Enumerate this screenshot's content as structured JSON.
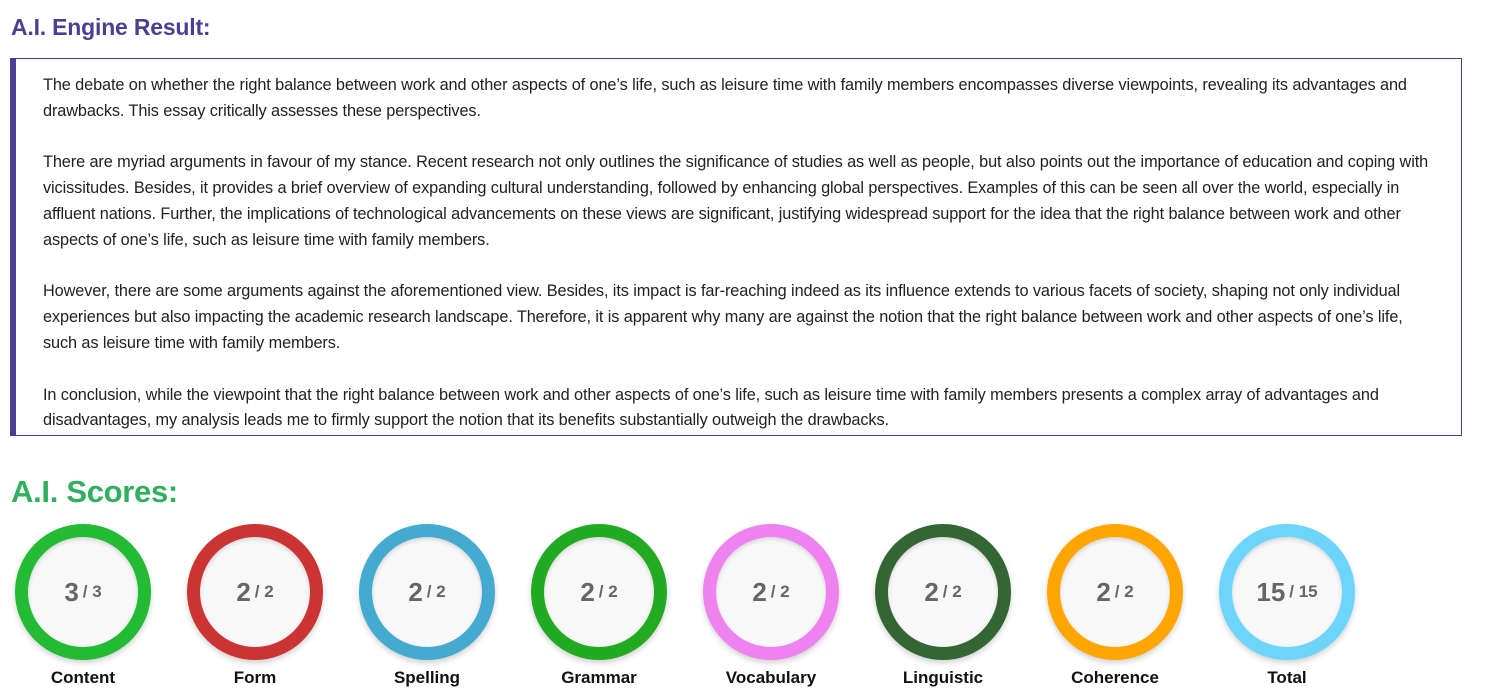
{
  "engine": {
    "title": "A.I. Engine Result:",
    "essay": [
      "The debate on whether the right balance between work and other aspects of one’s life, such as leisure time with family members encompasses diverse viewpoints, revealing its advantages and drawbacks. This essay critically assesses these perspectives.",
      "There are myriad arguments in favour of my stance. Recent research not only outlines the significance of studies as well as people, but also points out the importance of education and coping with vicissitudes. Besides, it provides a brief overview of expanding cultural understanding, followed by enhancing global perspectives. Examples of this can be seen all over the world, especially in affluent nations. Further, the implications of technological advancements on these views are significant, justifying widespread support for the idea that the right balance between work and other aspects of one’s life, such as leisure time with family members.",
      "However, there are some arguments against the aforementioned view. Besides, its impact is far-reaching indeed as its influence extends to various facets of society, shaping not only individual experiences but also impacting the academic research landscape. Therefore, it is apparent why many are against the notion that the right balance between work and other aspects of one’s life, such as leisure time with family members.",
      "In conclusion, while the viewpoint that the right balance between work and other aspects of one’s life, such as leisure time with family members presents a complex array of advantages and disadvantages, my analysis leads me to firmly support the notion that its benefits substantially outweigh the drawbacks."
    ]
  },
  "scores": {
    "title": "A.I. Scores:",
    "items": [
      {
        "label": "Content",
        "score": "3",
        "max": "/ 3",
        "color": "#22bb33"
      },
      {
        "label": "Form",
        "score": "2",
        "max": "/ 2",
        "color": "#cc3333"
      },
      {
        "label": "Spelling",
        "score": "2",
        "max": "/ 2",
        "color": "#44aad0"
      },
      {
        "label": "Grammar",
        "score": "2",
        "max": "/ 2",
        "color": "#22aa22"
      },
      {
        "label": "Vocabulary",
        "score": "2",
        "max": "/ 2",
        "color": "#ee82ee"
      },
      {
        "label": "Linguistic",
        "score": "2",
        "max": "/ 2",
        "color": "#336633"
      },
      {
        "label": "Coherence",
        "score": "2",
        "max": "/ 2",
        "color": "#ffa500"
      },
      {
        "label": "Total",
        "score": "15",
        "max": "/ 15",
        "color": "#6dd5fa"
      }
    ]
  }
}
